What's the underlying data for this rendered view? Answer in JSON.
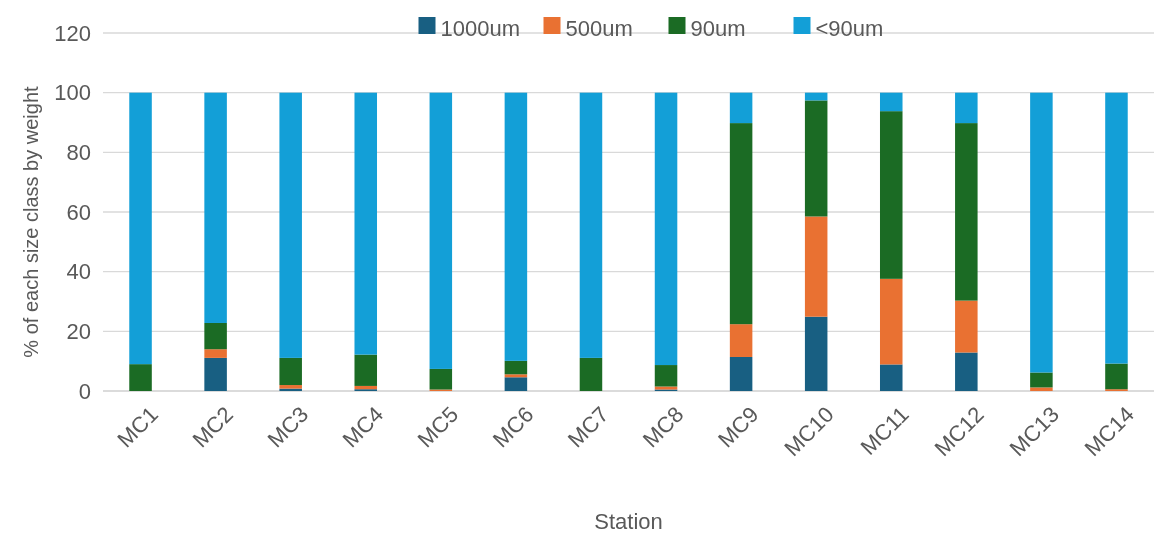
{
  "chart_data": {
    "type": "bar",
    "stacked": true,
    "xlabel": "Station",
    "ylabel": "% of each size class by weight",
    "categories": [
      "MC1",
      "MC2",
      "MC3",
      "MC4",
      "MC5",
      "MC6",
      "MC7",
      "MC8",
      "MC9",
      "MC10",
      "MC11",
      "MC12",
      "MC13",
      "MC14"
    ],
    "series": [
      {
        "name": "1000um",
        "color": "#185f82",
        "values": [
          0,
          11.1,
          0.8,
          0.6,
          0,
          4.6,
          0,
          0.5,
          11.4,
          24.9,
          8.9,
          12.9,
          0,
          0
        ]
      },
      {
        "name": "500um",
        "color": "#e97132",
        "values": [
          0,
          2.9,
          1.2,
          1.1,
          0.5,
          1.0,
          0,
          1.0,
          11.0,
          33.6,
          28.7,
          17.4,
          1.2,
          0.6
        ]
      },
      {
        "name": "90um",
        "color": "#1b6b24",
        "values": [
          9.0,
          8.8,
          9.1,
          10.5,
          6.9,
          4.5,
          11.1,
          7.2,
          67.4,
          38.9,
          56.2,
          59.5,
          5.0,
          8.6
        ]
      },
      {
        "name": "<90um",
        "color": "#139fd7",
        "values": [
          91.0,
          77.2,
          88.9,
          87.8,
          92.6,
          89.9,
          88.9,
          91.3,
          10.2,
          2.6,
          6.2,
          10.2,
          93.8,
          90.8
        ]
      }
    ],
    "ylim": [
      0,
      120
    ],
    "yticks": [
      0,
      20,
      40,
      60,
      80,
      100,
      120
    ],
    "grid": "y",
    "legend": "top"
  }
}
